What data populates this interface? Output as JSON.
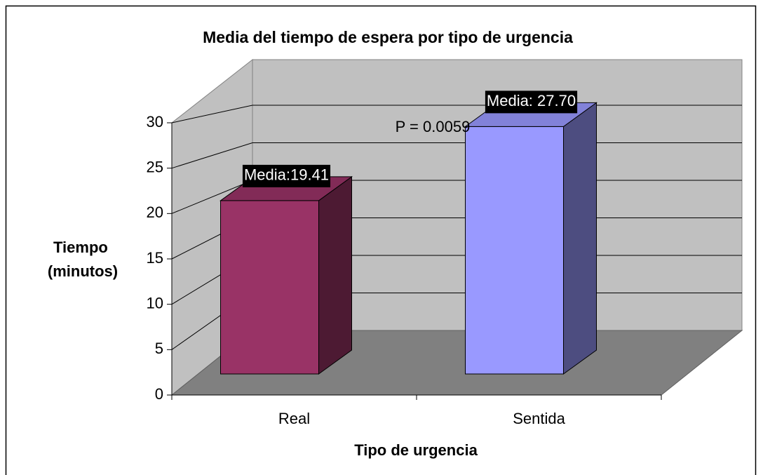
{
  "chart_data": {
    "type": "bar3d",
    "title": "Media del tiempo de espera por tipo de urgencia",
    "xlabel": "Tipo de urgencia",
    "ylabel": [
      "Tiempo",
      "(minutos)"
    ],
    "annotation": "P = 0.0059",
    "categories": [
      "Real",
      "Sentida"
    ],
    "values": [
      19.41,
      27.7
    ],
    "value_labels": [
      "Media:19.41",
      "Media: 27.70"
    ],
    "colors": [
      "#993366",
      "#9999ff"
    ],
    "ylim": [
      0,
      30
    ],
    "yticks": [
      0,
      5,
      10,
      15,
      20,
      25,
      30
    ],
    "grid": true
  }
}
